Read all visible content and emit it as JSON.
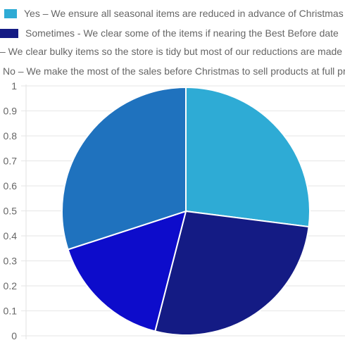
{
  "chart_data": {
    "type": "pie",
    "title": "",
    "legend": {
      "position": "top",
      "entries": [
        "Yes – We ensure all seasonal items are reduced in advance of Christmas",
        "Sometimes - We clear some of the items if nearing the Best Before date",
        "– We clear bulky items so the store is tidy but most of our reductions are made",
        "No – We make the most of the sales before Christmas to sell products at full price"
      ]
    },
    "slices": [
      {
        "label": "Yes – We ensure all seasonal items are reduced in advance of Christmas",
        "value": 27,
        "color": "#2eabd5"
      },
      {
        "label": "Sometimes - We clear some of the items if nearing the Best Before date",
        "value": 27,
        "color": "#141b84"
      },
      {
        "label": "– We clear bulky items so the store is tidy but most of our reductions are made",
        "value": 16,
        "color": "#0d0ccb"
      },
      {
        "label": "No – We make the most of the sales before Christmas to sell products at full price",
        "value": 30,
        "color": "#1f72be"
      }
    ],
    "y_axis": {
      "ticks": [
        "0",
        "0.1",
        "0.2",
        "0.3",
        "0.4",
        "0.5",
        "0.6",
        "0.7",
        "0.8",
        "0.9",
        "1"
      ],
      "ylim": [
        0,
        1
      ]
    },
    "grid": true
  }
}
